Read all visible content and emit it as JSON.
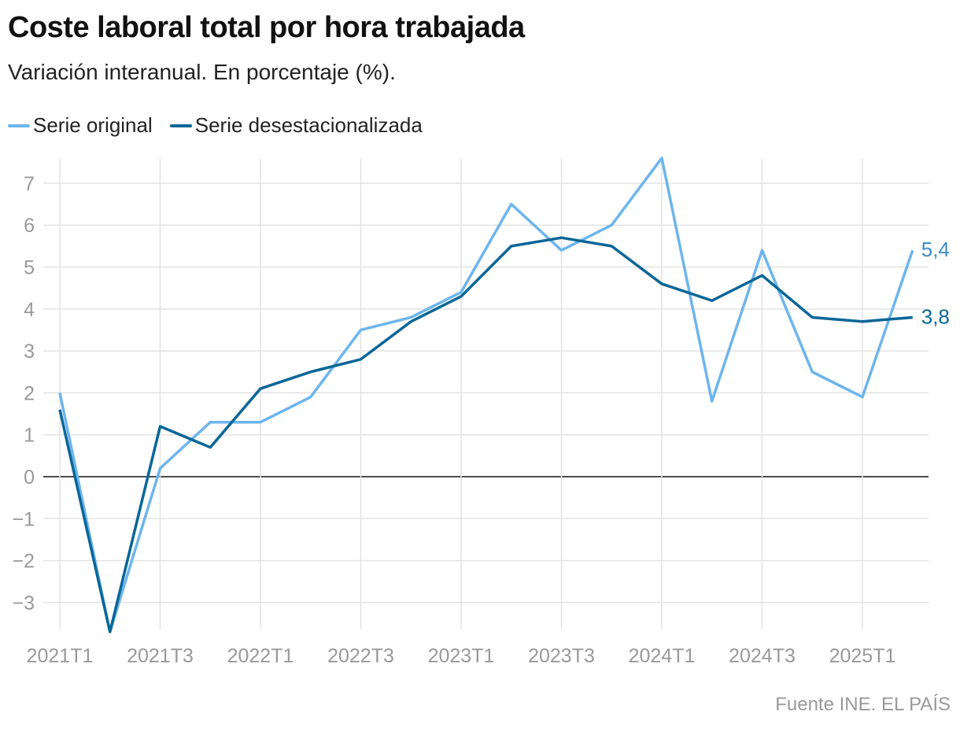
{
  "chart_data": {
    "type": "line",
    "title": "Coste laboral total por hora trabajada",
    "subtitle": "Variación interanual. En porcentaje (%).",
    "x": [
      "2021T1",
      "2021T2",
      "2021T3",
      "2021T4",
      "2022T1",
      "2022T2",
      "2022T3",
      "2022T4",
      "2023T1",
      "2023T2",
      "2023T3",
      "2023T4",
      "2024T1",
      "2024T2",
      "2024T3",
      "2024T4",
      "2025T1",
      "2025T2"
    ],
    "x_tick_labels": [
      "2021T1",
      "2021T3",
      "2022T1",
      "2022T3",
      "2023T1",
      "2023T3",
      "2024T1",
      "2024T3",
      "2025T1"
    ],
    "y_ticks": [
      -3,
      -2,
      -1,
      0,
      1,
      2,
      3,
      4,
      5,
      6,
      7
    ],
    "y_tick_labels": [
      "−3",
      "−2",
      "−1",
      "0",
      "1",
      "2",
      "3",
      "4",
      "5",
      "6",
      "7"
    ],
    "ylim": [
      -3.7,
      7.6
    ],
    "grid": true,
    "legend_position": "top-left",
    "series": [
      {
        "name": "Serie original",
        "color": "#6db5ee",
        "end_label": "5,4",
        "values": [
          2.0,
          -3.7,
          0.2,
          1.3,
          1.3,
          1.9,
          3.5,
          3.8,
          4.4,
          6.5,
          5.4,
          6.0,
          7.6,
          1.8,
          5.4,
          2.5,
          1.9,
          5.4
        ]
      },
      {
        "name": "Serie desestacionalizada",
        "color": "#0a6698",
        "end_label": "3,8",
        "values": [
          1.6,
          -3.7,
          1.2,
          0.7,
          2.1,
          2.5,
          2.8,
          3.7,
          4.3,
          5.5,
          5.7,
          5.5,
          4.6,
          4.2,
          4.8,
          3.8,
          3.7,
          3.8
        ]
      }
    ],
    "source": "Fuente INE. EL PAÍS"
  }
}
